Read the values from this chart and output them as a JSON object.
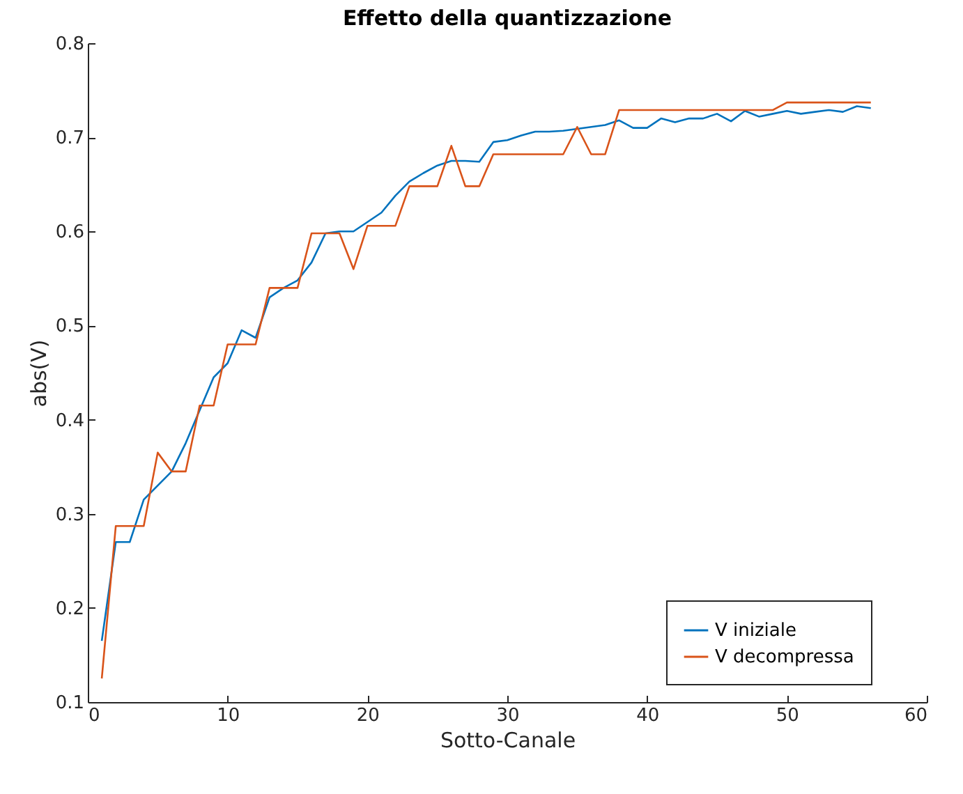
{
  "chart_data": {
    "type": "line",
    "title": "Effetto della quantizzazione",
    "xlabel": "Sotto-Canale",
    "ylabel": "abs(V)",
    "x": [
      1,
      2,
      3,
      4,
      5,
      6,
      7,
      8,
      9,
      10,
      11,
      12,
      13,
      14,
      15,
      16,
      17,
      18,
      19,
      20,
      21,
      22,
      23,
      24,
      25,
      26,
      27,
      28,
      29,
      30,
      31,
      32,
      33,
      34,
      35,
      36,
      37,
      38,
      39,
      40,
      41,
      42,
      43,
      44,
      45,
      46,
      47,
      48,
      49,
      50,
      51,
      52,
      53,
      54,
      55,
      56
    ],
    "series": [
      {
        "name": "V iniziale",
        "color": "#0072bd",
        "values": [
          0.165,
          0.27,
          0.27,
          0.315,
          0.33,
          0.345,
          0.375,
          0.41,
          0.445,
          0.46,
          0.495,
          0.487,
          0.53,
          0.54,
          0.548,
          0.567,
          0.598,
          0.6,
          0.6,
          0.61,
          0.62,
          0.638,
          0.653,
          0.662,
          0.67,
          0.675,
          0.675,
          0.674,
          0.695,
          0.697,
          0.702,
          0.706,
          0.706,
          0.707,
          0.709,
          0.711,
          0.713,
          0.718,
          0.71,
          0.71,
          0.72,
          0.716,
          0.72,
          0.72,
          0.725,
          0.717,
          0.728,
          0.722,
          0.725,
          0.728,
          0.725,
          0.727,
          0.729,
          0.727,
          0.733,
          0.731
        ]
      },
      {
        "name": "V decompressa",
        "color": "#d95319",
        "values": [
          0.125,
          0.287,
          0.287,
          0.287,
          0.365,
          0.345,
          0.345,
          0.415,
          0.415,
          0.48,
          0.48,
          0.48,
          0.54,
          0.54,
          0.54,
          0.598,
          0.598,
          0.598,
          0.56,
          0.606,
          0.606,
          0.606,
          0.648,
          0.648,
          0.648,
          0.691,
          0.648,
          0.648,
          0.682,
          0.682,
          0.682,
          0.682,
          0.682,
          0.682,
          0.711,
          0.682,
          0.682,
          0.729,
          0.729,
          0.729,
          0.729,
          0.729,
          0.729,
          0.729,
          0.729,
          0.729,
          0.729,
          0.729,
          0.729,
          0.737,
          0.737,
          0.737,
          0.737,
          0.737,
          0.737,
          0.737
        ]
      }
    ],
    "xlim": [
      0,
      60
    ],
    "xticks": [
      0,
      10,
      20,
      30,
      40,
      50,
      60
    ],
    "ylim": [
      0.1,
      0.8
    ],
    "yticks": [
      0.1,
      0.2,
      0.3,
      0.4,
      0.5,
      0.6,
      0.7,
      0.8
    ],
    "grid": false,
    "legend": "bottom right",
    "marker": "none",
    "line_style": "solid"
  }
}
